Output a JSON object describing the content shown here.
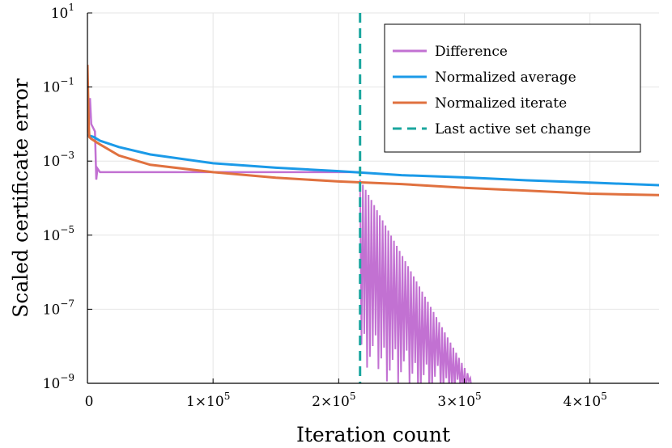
{
  "chart_data": {
    "type": "line",
    "xlabel": "Iteration count",
    "ylabel": "Scaled certificate error",
    "xlim": [
      0,
      455000
    ],
    "ylim_log10": [
      -9,
      1
    ],
    "y_scale": "log",
    "grid": true,
    "legend_position": "top-right",
    "x_ticks": [
      {
        "value": 0,
        "label": "0"
      },
      {
        "value": 100000,
        "label": "1×10",
        "exp": "5"
      },
      {
        "value": 200000,
        "label": "2×10",
        "exp": "5"
      },
      {
        "value": 300000,
        "label": "3×10",
        "exp": "5"
      },
      {
        "value": 400000,
        "label": "4×10",
        "exp": "5"
      }
    ],
    "y_ticks": [
      {
        "value": 1,
        "base": "10",
        "exp": "1"
      },
      {
        "value": -1,
        "base": "10",
        "exp": "−1"
      },
      {
        "value": -3,
        "base": "10",
        "exp": "−3"
      },
      {
        "value": -5,
        "base": "10",
        "exp": "−5"
      },
      {
        "value": -7,
        "base": "10",
        "exp": "−7"
      },
      {
        "value": -9,
        "base": "10",
        "exp": "−9"
      }
    ],
    "series": [
      {
        "name": "Difference",
        "color": "#c271d2",
        "segments": {
          "early": [
            [
              0,
              -0.6
            ],
            [
              1000,
              -1.9
            ],
            [
              2000,
              -1.3
            ],
            [
              3000,
              -2.0
            ],
            [
              4500,
              -2.1
            ],
            [
              6000,
              -2.2
            ],
            [
              7000,
              -3.5
            ],
            [
              8000,
              -3.2
            ],
            [
              10000,
              -3.3
            ],
            [
              216000,
              -3.3
            ]
          ],
          "oscillation": {
            "x_start": 217000,
            "x_end": 307000,
            "upper_start": -3.5,
            "upper_end": -9.0,
            "lower_start": -7.5,
            "lower_end": -9.0,
            "amplitude_at_start": 3.8,
            "cycles": 40
          }
        }
      },
      {
        "name": "Normalized average",
        "color": "#1b9ae8",
        "points": [
          [
            0,
            -2.3
          ],
          [
            5000,
            -2.35
          ],
          [
            10000,
            -2.45
          ],
          [
            25000,
            -2.62
          ],
          [
            50000,
            -2.82
          ],
          [
            100000,
            -3.06
          ],
          [
            150000,
            -3.18
          ],
          [
            200000,
            -3.27
          ],
          [
            250000,
            -3.38
          ],
          [
            300000,
            -3.44
          ],
          [
            350000,
            -3.52
          ],
          [
            400000,
            -3.58
          ],
          [
            455000,
            -3.65
          ]
        ]
      },
      {
        "name": "Normalized iterate",
        "color": "#e0713f",
        "points": [
          [
            0,
            -0.4
          ],
          [
            500,
            -1.2
          ],
          [
            1000,
            -2.0
          ],
          [
            1500,
            -2.35
          ],
          [
            3000,
            -2.4
          ],
          [
            10000,
            -2.55
          ],
          [
            25000,
            -2.85
          ],
          [
            50000,
            -3.1
          ],
          [
            100000,
            -3.3
          ],
          [
            150000,
            -3.45
          ],
          [
            200000,
            -3.55
          ],
          [
            250000,
            -3.62
          ],
          [
            300000,
            -3.72
          ],
          [
            350000,
            -3.8
          ],
          [
            400000,
            -3.88
          ],
          [
            455000,
            -3.92
          ]
        ]
      },
      {
        "name": "Last active set change",
        "color": "#1aa69e",
        "style": "dashed",
        "x": 217000
      }
    ]
  }
}
